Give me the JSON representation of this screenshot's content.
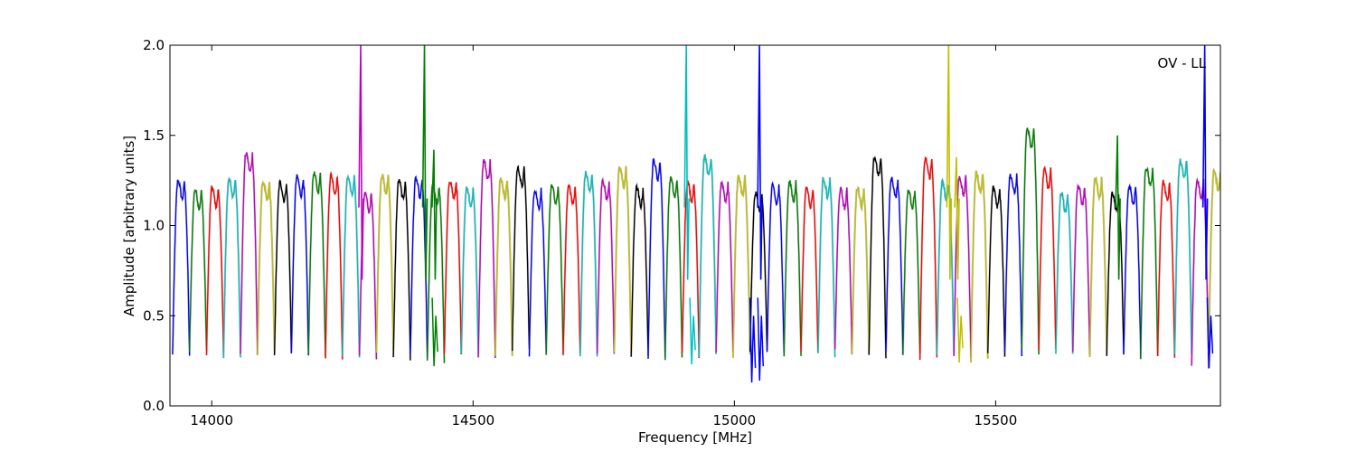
{
  "chart_data": {
    "type": "line",
    "title": "",
    "xlabel": "Frequency [MHz]",
    "ylabel": "Amplitude [arbitrary units]",
    "xlim": [
      13920,
      15930
    ],
    "ylim": [
      0.0,
      2.0
    ],
    "x_ticks": [
      14000,
      14500,
      15000,
      15500
    ],
    "y_ticks": [
      0.0,
      0.5,
      1.0,
      1.5,
      2.0
    ],
    "x_tick_labels": [
      "14000",
      "14500",
      "15000",
      "15500"
    ],
    "y_tick_labels": [
      "0.0",
      "0.5",
      "1.0",
      "1.5",
      "2.0"
    ],
    "grid": false,
    "annotation": "OV - LL",
    "annotation_position": "top-right",
    "color_cycle": [
      "#0000ff",
      "#008000",
      "#ff0000",
      "#00bfbf",
      "#bf00bf",
      "#bfbf00",
      "#000000"
    ],
    "shadow_color": "#c0c0c0",
    "channel_width_mhz": 32.5,
    "channel_start_mhz": 13925,
    "channel_count": 62,
    "channel_peak_levels": [
      1.25,
      1.2,
      1.21,
      1.26,
      1.4,
      1.24,
      1.24,
      1.27,
      1.29,
      1.28,
      1.27,
      1.18,
      1.28,
      1.25,
      1.26,
      1.22,
      1.25,
      1.21,
      1.36,
      1.26,
      1.32,
      1.2,
      1.22,
      1.22,
      1.29,
      1.25,
      1.32,
      1.21,
      1.36,
      1.26,
      1.24,
      1.38,
      1.24,
      1.27,
      1.18,
      1.22,
      1.24,
      1.21,
      1.26,
      1.2,
      1.21,
      1.38,
      1.26,
      1.2,
      1.37,
      1.24,
      1.27,
      1.29,
      1.21,
      1.28,
      1.54,
      1.31,
      1.18,
      1.22,
      1.26,
      1.18,
      1.22,
      1.32,
      1.24,
      1.36,
      1.25,
      1.3
    ],
    "channel_min_levels": [
      0.28,
      0.29,
      0.29,
      0.28,
      0.28,
      0.29,
      0.29,
      0.29,
      0.28,
      0.27,
      0.28,
      0.27,
      0.3,
      0.26,
      0.27,
      0.24,
      0.28,
      0.28,
      0.28,
      0.29,
      0.3,
      0.28,
      0.28,
      0.28,
      0.27,
      0.28,
      0.29,
      0.27,
      0.26,
      0.26,
      0.28,
      0.28,
      0.29,
      0.28,
      0.3,
      0.29,
      0.28,
      0.29,
      0.28,
      0.3,
      0.28,
      0.27,
      0.29,
      0.28,
      0.27,
      0.28,
      0.28,
      0.25,
      0.28,
      0.29,
      0.3,
      0.31,
      0.3,
      0.29,
      0.28,
      0.29,
      0.28,
      0.27,
      0.28,
      0.29,
      0.22,
      0.3
    ],
    "spikes": [
      {
        "x": 14285,
        "y": 2.0,
        "color": "#bf00bf"
      },
      {
        "x": 14407,
        "y": 2.0,
        "color": "#008000"
      },
      {
        "x": 14425,
        "y": 1.42,
        "color": "#008000"
      },
      {
        "x": 14908,
        "y": 2.0,
        "color": "#00bfbf"
      },
      {
        "x": 15048,
        "y": 2.0,
        "color": "#0000ff"
      },
      {
        "x": 15410,
        "y": 2.0,
        "color": "#bfbf00"
      },
      {
        "x": 15425,
        "y": 1.38,
        "color": "#bfbf00"
      },
      {
        "x": 15733,
        "y": 1.5,
        "color": "#008000"
      },
      {
        "x": 15900,
        "y": 2.0,
        "color": "#0000ff"
      }
    ],
    "dropouts": [
      {
        "x": 14427,
        "y": 0.22,
        "color": "#008000"
      },
      {
        "x": 14920,
        "y": 0.23,
        "color": "#00bfbf"
      },
      {
        "x": 15035,
        "y": 0.13,
        "color": "#0000ff"
      },
      {
        "x": 15050,
        "y": 0.14,
        "color": "#0000ff"
      },
      {
        "x": 15432,
        "y": 0.24,
        "color": "#bfbf00"
      },
      {
        "x": 15910,
        "y": 0.21,
        "color": "#0000ff"
      }
    ]
  }
}
